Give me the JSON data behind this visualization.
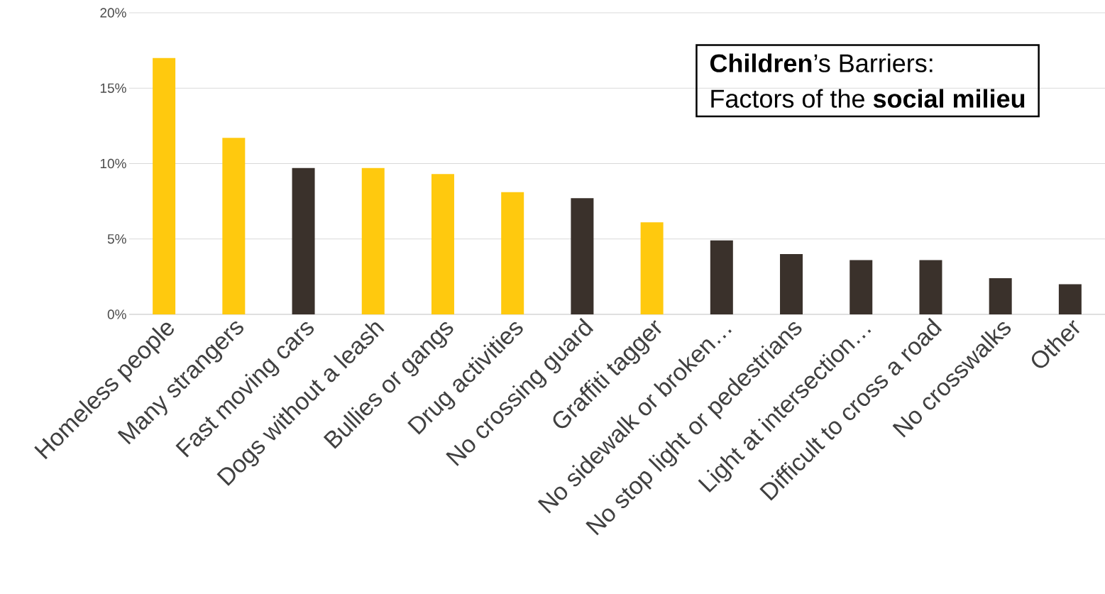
{
  "chart_data": {
    "type": "bar",
    "title": "**Children**’s Barriers:",
    "subtitle": "Factors of the **social milieu**",
    "categories": [
      "Homeless people",
      "Many strangers",
      "Fast moving cars",
      "Dogs without a leash",
      "Bullies or gangs",
      "Drug activities",
      "No crossing guard",
      "Graffiti tagger",
      "No sidewalk or broken…",
      "No stop light or pedestrians",
      "Light at intersection…",
      "Difficult to cross a road",
      "No crosswalks",
      "Other"
    ],
    "values": [
      17,
      11.7,
      9.7,
      9.7,
      9.3,
      8.1,
      7.7,
      6.1,
      4.9,
      4.0,
      3.6,
      3.6,
      2.4,
      2.0
    ],
    "colors": [
      "#ffc90e",
      "#ffc90e",
      "#3a312b",
      "#ffc90e",
      "#ffc90e",
      "#ffc90e",
      "#3a312b",
      "#ffc90e",
      "#3a312b",
      "#3a312b",
      "#3a312b",
      "#3a312b",
      "#3a312b",
      "#3a312b"
    ],
    "ylim": [
      0,
      20
    ],
    "yticks": [
      {
        "value": 0,
        "label": "0%"
      },
      {
        "value": 5,
        "label": "5%"
      },
      {
        "value": 10,
        "label": "10%"
      },
      {
        "value": 15,
        "label": "15%"
      },
      {
        "value": 20,
        "label": "20%"
      }
    ],
    "grid": "y"
  }
}
